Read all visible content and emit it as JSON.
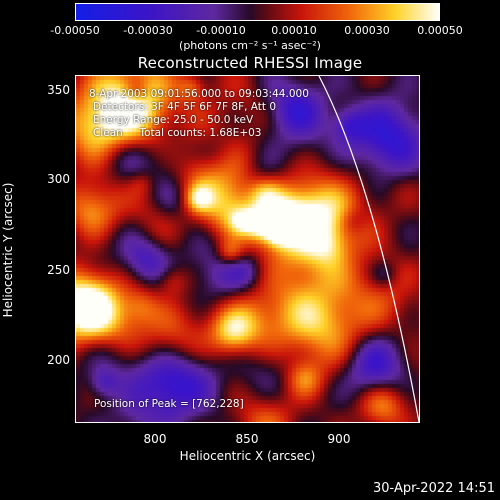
{
  "colorbar": {
    "ticks": [
      "-0.00050",
      "-0.00030",
      "-0.00010",
      "0.00010",
      "0.00030",
      "0.00050"
    ],
    "units": "(photons cm⁻² s⁻¹ asec⁻²)"
  },
  "title": "Reconstructed RHESSI Image",
  "info": {
    "time_range": "8-Apr-2003 09:01:56.000 to 09:03:44.000",
    "detectors": "Detectors: 3F 4F 5F 6F 7F 8F, Att 0",
    "energy_range": "Energy Range: 25.0 - 50.0 keV",
    "clean": "Clean     Total counts: 1.68E+03",
    "peak": "Position of Peak = [762,228]"
  },
  "axes": {
    "xlabel": "Heliocentric X (arcsec)",
    "ylabel": "Heliocentric Y (arcsec)",
    "x_ticks": [
      "800",
      "850",
      "900"
    ],
    "y_ticks": [
      "350",
      "300",
      "250",
      "200"
    ],
    "x_range": [
      758,
      944
    ],
    "y_range": [
      162,
      358
    ]
  },
  "timestamp": "30-Apr-2022 14:51"
}
